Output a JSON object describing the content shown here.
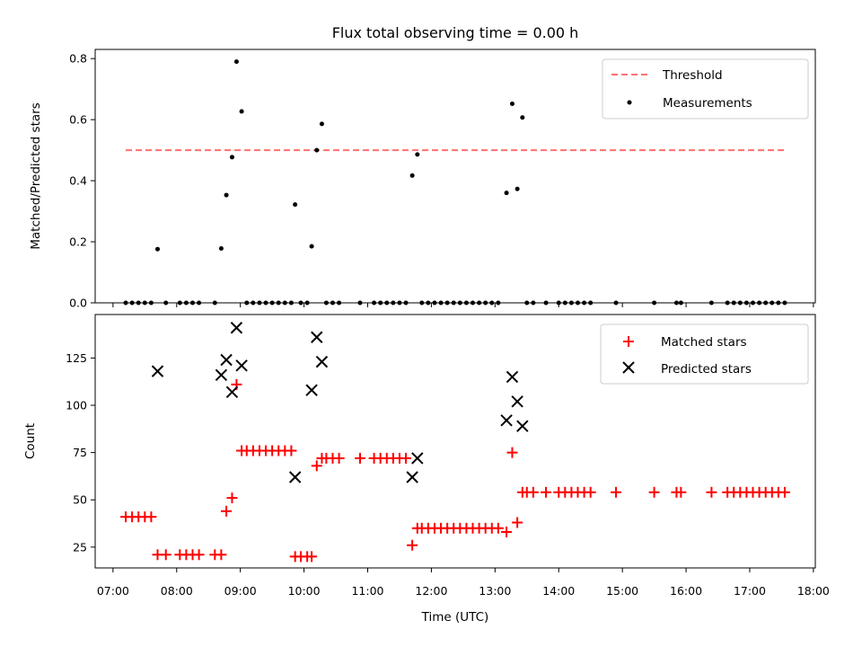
{
  "figure": {
    "title": "Flux total observing time = 0.00 h",
    "xlabel": "Time (UTC)"
  },
  "chart_data": [
    {
      "type": "scatter",
      "panel": "top",
      "ylabel": "Matched/Predicted stars",
      "ylim": [
        0,
        0.83
      ],
      "yticks": [
        0.0,
        0.2,
        0.4,
        0.6,
        0.8
      ],
      "ytick_labels": [
        "0.0",
        "0.2",
        "0.4",
        "0.6",
        "0.8"
      ],
      "legend_position": "top-right",
      "threshold": {
        "name": "Threshold",
        "value": 0.5,
        "x_start": 7.2,
        "x_end": 17.55,
        "color": "#ff7070"
      },
      "series": [
        {
          "name": "Measurements",
          "color": "#000000",
          "points": [
            [
              7.2,
              0
            ],
            [
              7.3,
              0
            ],
            [
              7.4,
              0
            ],
            [
              7.5,
              0
            ],
            [
              7.6,
              0
            ],
            [
              7.7,
              0.176
            ],
            [
              7.83,
              0
            ],
            [
              8.05,
              0
            ],
            [
              8.15,
              0
            ],
            [
              8.25,
              0
            ],
            [
              8.35,
              0
            ],
            [
              8.6,
              0
            ],
            [
              8.7,
              0.178
            ],
            [
              8.78,
              0.353
            ],
            [
              8.87,
              0.477
            ],
            [
              8.94,
              0.79
            ],
            [
              9.02,
              0.627
            ],
            [
              9.1,
              0
            ],
            [
              9.2,
              0
            ],
            [
              9.3,
              0
            ],
            [
              9.4,
              0
            ],
            [
              9.5,
              0
            ],
            [
              9.6,
              0
            ],
            [
              9.7,
              0
            ],
            [
              9.8,
              0
            ],
            [
              9.86,
              0.322
            ],
            [
              9.95,
              0
            ],
            [
              10.05,
              0
            ],
            [
              10.12,
              0.185
            ],
            [
              10.2,
              0.5
            ],
            [
              10.28,
              0.586
            ],
            [
              10.35,
              0
            ],
            [
              10.45,
              0
            ],
            [
              10.55,
              0
            ],
            [
              10.88,
              0
            ],
            [
              11.1,
              0
            ],
            [
              11.2,
              0
            ],
            [
              11.3,
              0
            ],
            [
              11.4,
              0
            ],
            [
              11.5,
              0
            ],
            [
              11.6,
              0
            ],
            [
              11.7,
              0.417
            ],
            [
              11.78,
              0.486
            ],
            [
              11.85,
              0
            ],
            [
              11.95,
              0
            ],
            [
              12.05,
              0
            ],
            [
              12.15,
              0
            ],
            [
              12.25,
              0
            ],
            [
              12.35,
              0
            ],
            [
              12.45,
              0
            ],
            [
              12.55,
              0
            ],
            [
              12.65,
              0
            ],
            [
              12.75,
              0
            ],
            [
              12.85,
              0
            ],
            [
              12.95,
              0
            ],
            [
              13.05,
              0
            ],
            [
              13.18,
              0.36
            ],
            [
              13.27,
              0.652
            ],
            [
              13.35,
              0.373
            ],
            [
              13.43,
              0.607
            ],
            [
              13.5,
              0
            ],
            [
              13.6,
              0
            ],
            [
              13.8,
              0
            ],
            [
              14.0,
              0
            ],
            [
              14.1,
              0
            ],
            [
              14.2,
              0
            ],
            [
              14.3,
              0
            ],
            [
              14.4,
              0
            ],
            [
              14.5,
              0
            ],
            [
              14.9,
              0
            ],
            [
              15.5,
              0
            ],
            [
              15.85,
              0
            ],
            [
              15.92,
              0
            ],
            [
              16.4,
              0
            ],
            [
              16.65,
              0
            ],
            [
              16.75,
              0
            ],
            [
              16.85,
              0
            ],
            [
              16.95,
              0
            ],
            [
              17.05,
              0
            ],
            [
              17.15,
              0
            ],
            [
              17.25,
              0
            ],
            [
              17.35,
              0
            ],
            [
              17.45,
              0
            ],
            [
              17.55,
              0
            ]
          ]
        }
      ]
    },
    {
      "type": "scatter",
      "panel": "bottom",
      "ylabel": "Count",
      "ylim": [
        14,
        148
      ],
      "yticks": [
        25,
        50,
        75,
        100,
        125
      ],
      "ytick_labels": [
        "25",
        "50",
        "75",
        "100",
        "125"
      ],
      "xlim": [
        6.72,
        18.03
      ],
      "xticks": [
        7,
        8,
        9,
        10,
        11,
        12,
        13,
        14,
        15,
        16,
        17,
        18
      ],
      "xtick_labels": [
        "07:00",
        "08:00",
        "09:00",
        "10:00",
        "11:00",
        "12:00",
        "13:00",
        "14:00",
        "15:00",
        "16:00",
        "17:00",
        "18:00"
      ],
      "legend_position": "top-right",
      "series": [
        {
          "name": "Matched stars",
          "marker": "plus",
          "color": "#ff0000",
          "points": [
            [
              7.2,
              41
            ],
            [
              7.3,
              41
            ],
            [
              7.4,
              41
            ],
            [
              7.5,
              41
            ],
            [
              7.6,
              41
            ],
            [
              7.7,
              21
            ],
            [
              7.83,
              21
            ],
            [
              8.05,
              21
            ],
            [
              8.15,
              21
            ],
            [
              8.25,
              21
            ],
            [
              8.35,
              21
            ],
            [
              8.6,
              21
            ],
            [
              8.7,
              21
            ],
            [
              8.78,
              44
            ],
            [
              8.87,
              51
            ],
            [
              8.94,
              111
            ],
            [
              9.02,
              76
            ],
            [
              9.1,
              76
            ],
            [
              9.2,
              76
            ],
            [
              9.3,
              76
            ],
            [
              9.4,
              76
            ],
            [
              9.5,
              76
            ],
            [
              9.6,
              76
            ],
            [
              9.7,
              76
            ],
            [
              9.8,
              76
            ],
            [
              9.86,
              20
            ],
            [
              9.95,
              20
            ],
            [
              10.05,
              20
            ],
            [
              10.12,
              20
            ],
            [
              10.2,
              68
            ],
            [
              10.28,
              72
            ],
            [
              10.35,
              72
            ],
            [
              10.45,
              72
            ],
            [
              10.55,
              72
            ],
            [
              10.88,
              72
            ],
            [
              11.1,
              72
            ],
            [
              11.2,
              72
            ],
            [
              11.3,
              72
            ],
            [
              11.4,
              72
            ],
            [
              11.5,
              72
            ],
            [
              11.6,
              72
            ],
            [
              11.7,
              26
            ],
            [
              11.78,
              35
            ],
            [
              11.85,
              35
            ],
            [
              11.95,
              35
            ],
            [
              12.05,
              35
            ],
            [
              12.15,
              35
            ],
            [
              12.25,
              35
            ],
            [
              12.35,
              35
            ],
            [
              12.45,
              35
            ],
            [
              12.55,
              35
            ],
            [
              12.65,
              35
            ],
            [
              12.75,
              35
            ],
            [
              12.85,
              35
            ],
            [
              12.95,
              35
            ],
            [
              13.05,
              35
            ],
            [
              13.18,
              33
            ],
            [
              13.27,
              75
            ],
            [
              13.35,
              38
            ],
            [
              13.43,
              54
            ],
            [
              13.5,
              54
            ],
            [
              13.6,
              54
            ],
            [
              13.8,
              54
            ],
            [
              14.0,
              54
            ],
            [
              14.1,
              54
            ],
            [
              14.2,
              54
            ],
            [
              14.3,
              54
            ],
            [
              14.4,
              54
            ],
            [
              14.5,
              54
            ],
            [
              14.9,
              54
            ],
            [
              15.5,
              54
            ],
            [
              15.85,
              54
            ],
            [
              15.92,
              54
            ],
            [
              16.4,
              54
            ],
            [
              16.65,
              54
            ],
            [
              16.75,
              54
            ],
            [
              16.85,
              54
            ],
            [
              16.95,
              54
            ],
            [
              17.05,
              54
            ],
            [
              17.15,
              54
            ],
            [
              17.25,
              54
            ],
            [
              17.35,
              54
            ],
            [
              17.45,
              54
            ],
            [
              17.55,
              54
            ]
          ]
        },
        {
          "name": "Predicted stars",
          "marker": "x",
          "color": "#000000",
          "points": [
            [
              7.7,
              118
            ],
            [
              8.7,
              116
            ],
            [
              8.78,
              124
            ],
            [
              8.87,
              107
            ],
            [
              8.94,
              141
            ],
            [
              9.02,
              121
            ],
            [
              9.86,
              62
            ],
            [
              10.12,
              108
            ],
            [
              10.2,
              136
            ],
            [
              10.28,
              123
            ],
            [
              11.7,
              62
            ],
            [
              11.78,
              72
            ],
            [
              13.18,
              92
            ],
            [
              13.27,
              115
            ],
            [
              13.35,
              102
            ],
            [
              13.43,
              89
            ]
          ]
        }
      ]
    }
  ]
}
